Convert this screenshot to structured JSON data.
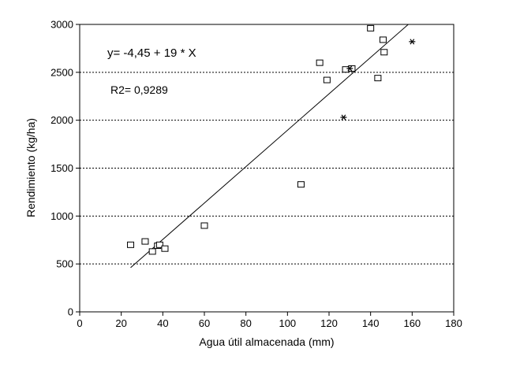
{
  "chart_data": {
    "type": "scatter",
    "xlabel": "Agua útil almacenada  (mm)",
    "ylabel": "Rendimiento (kg/ha)",
    "xlim": [
      0,
      180
    ],
    "ylim": [
      0,
      3000
    ],
    "xticks": [
      "0",
      "20",
      "40",
      "60",
      "80",
      "100",
      "120",
      "140",
      "160",
      "180"
    ],
    "yticks": [
      "0",
      "500",
      "1000",
      "1500",
      "2000",
      "2500",
      "3000"
    ],
    "grid": "horizontal-dotted",
    "annotations": {
      "equation": "y= -4,45 + 19 * X",
      "r2": "R2= 0,9289"
    },
    "regression": {
      "intercept": -4.45,
      "slope": 19,
      "x_range": [
        24.5,
        158.5
      ]
    },
    "series": [
      {
        "marker": "square",
        "points": [
          [
            24.5,
            700
          ],
          [
            31.5,
            735
          ],
          [
            35,
            630
          ],
          [
            37.5,
            690
          ],
          [
            38.5,
            700
          ],
          [
            41,
            660
          ],
          [
            60,
            900
          ],
          [
            106.5,
            1330
          ],
          [
            115.5,
            2600
          ],
          [
            119,
            2420
          ],
          [
            128,
            2530
          ],
          [
            131,
            2540
          ],
          [
            140,
            2960
          ],
          [
            143.5,
            2440
          ],
          [
            146,
            2840
          ],
          [
            146.5,
            2710
          ]
        ]
      },
      {
        "marker": "asterisk",
        "points": [
          [
            127,
            2030
          ],
          [
            130,
            2540
          ],
          [
            160,
            2820
          ]
        ]
      }
    ]
  }
}
